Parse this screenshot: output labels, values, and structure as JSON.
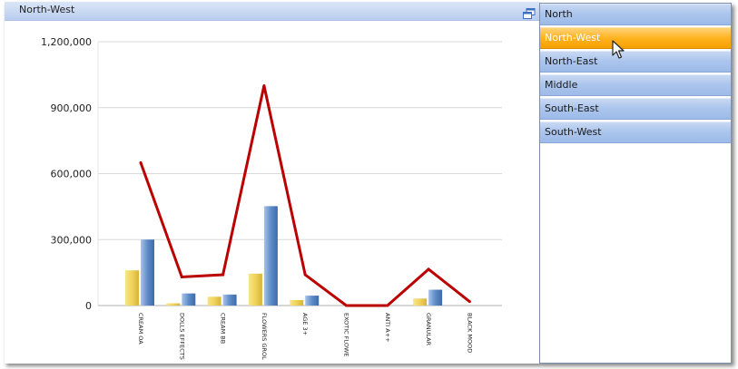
{
  "window": {
    "title": "North-West"
  },
  "icons": {
    "maximize": "maximize-icon",
    "cursor": "mouse-pointer-icon"
  },
  "dropdown": {
    "selected": "North-West",
    "items": [
      "North",
      "North-West",
      "North-East",
      "Middle",
      "South-East",
      "South-West"
    ]
  },
  "colors": {
    "series_bar_1": "#f0d25a",
    "series_bar_2": "#5e8cc9",
    "series_line": "#bb0000",
    "selected_item": "#ffb21f",
    "title_bar": "#c9d9f2"
  },
  "chart_data": {
    "type": "bar",
    "title": "",
    "xlabel": "",
    "ylabel": "",
    "ylim": [
      0,
      1200000
    ],
    "yticks": [
      "1,200,000",
      "900,000",
      "600,000",
      "300,000",
      "0"
    ],
    "grid": true,
    "categories": [
      "CREAM OA",
      "DOLLS EFFECTS",
      "CREAM BB",
      "FLOWERS GROL",
      "AGE 3+",
      "EXOTIC FLOWE",
      "ANTI A++",
      "GRANULAR",
      "BLACK MOOD"
    ],
    "series": [
      {
        "type": "bar",
        "values": [
          160000,
          10000,
          40000,
          145000,
          25000,
          0,
          0,
          32000,
          0
        ]
      },
      {
        "type": "bar",
        "values": [
          300000,
          55000,
          50000,
          452000,
          45000,
          0,
          0,
          72000,
          0
        ]
      },
      {
        "type": "line",
        "values": [
          650000,
          130000,
          140000,
          1000000,
          140000,
          0,
          0,
          165000,
          18000
        ]
      }
    ]
  }
}
